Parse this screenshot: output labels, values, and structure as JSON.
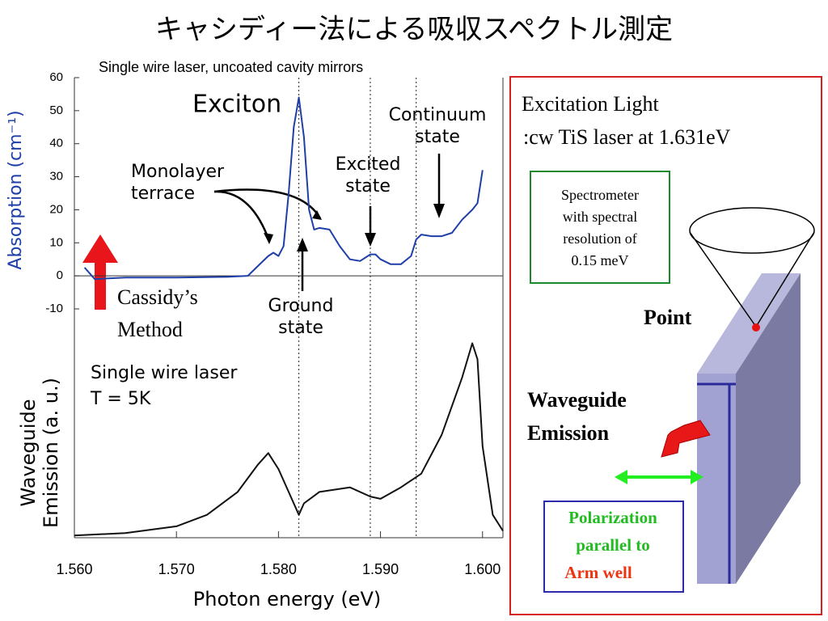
{
  "title": "キャシディー法による吸収スペクトル測定",
  "chart_data": [
    {
      "type": "line",
      "subtitle": "Single wire laser, uncoated cavity mirrors",
      "y_label": "Absorption (cm⁻¹)",
      "x_label": "Photon energy (eV)",
      "color": "#1f3fa8",
      "xlim": [
        1.56,
        1.602
      ],
      "xticks": [
        {
          "value": 1.56,
          "label": "1.560"
        },
        {
          "value": 1.57,
          "label": "1.570"
        },
        {
          "value": 1.58,
          "label": "1.580"
        },
        {
          "value": 1.59,
          "label": "1.590"
        },
        {
          "value": 1.6,
          "label": "1.600"
        }
      ],
      "ylim": [
        -10,
        60
      ],
      "yticks": [
        60,
        50,
        40,
        30,
        20,
        10,
        0,
        -10
      ],
      "vlines": [
        1.582,
        1.589,
        1.5935
      ],
      "x": [
        1.561,
        1.562,
        1.565,
        1.57,
        1.575,
        1.577,
        1.578,
        1.579,
        1.5795,
        1.58,
        1.5805,
        1.581,
        1.5815,
        1.582,
        1.5825,
        1.583,
        1.5835,
        1.584,
        1.585,
        1.586,
        1.587,
        1.588,
        1.589,
        1.5895,
        1.59,
        1.591,
        1.592,
        1.593,
        1.5935,
        1.594,
        1.595,
        1.596,
        1.597,
        1.598,
        1.599,
        1.5995,
        1.6
      ],
      "values": [
        2.5,
        -1,
        -0.5,
        -0.5,
        -0.3,
        0,
        3,
        6,
        7,
        6,
        9,
        25,
        45,
        54,
        42,
        20,
        14,
        14.5,
        14,
        9,
        5,
        4.5,
        6.5,
        6.5,
        5,
        3.5,
        3.5,
        6,
        11,
        12.5,
        12,
        12,
        13,
        17,
        20,
        22,
        32
      ],
      "annotations": {
        "exciton": "Exciton",
        "monolayer": [
          "Monolayer",
          "terrace"
        ],
        "excited": [
          "Excited",
          "state"
        ],
        "continuum": [
          "Continuum",
          "state"
        ],
        "ground": [
          "Ground",
          "state"
        ],
        "cassidy": [
          "Cassidy’s",
          "Method"
        ]
      }
    },
    {
      "type": "line",
      "y_label": [
        "Waveguide",
        "Emission (a. u.)"
      ],
      "color": "#111111",
      "xlim": [
        1.56,
        1.602
      ],
      "ylim": [
        0,
        100
      ],
      "x": [
        1.56,
        1.565,
        1.57,
        1.573,
        1.576,
        1.578,
        1.579,
        1.58,
        1.581,
        1.582,
        1.5825,
        1.584,
        1.587,
        1.589,
        1.59,
        1.592,
        1.594,
        1.596,
        1.598,
        1.599,
        1.5995,
        1.6,
        1.601,
        1.602
      ],
      "values": [
        1,
        2,
        5,
        10,
        20,
        32,
        37,
        30,
        20,
        10,
        15,
        20,
        22,
        18,
        17,
        22,
        28,
        45,
        70,
        85,
        78,
        40,
        10,
        3
      ],
      "annotations": {
        "sample": [
          "Single wire laser",
          "T = 5K"
        ]
      }
    }
  ],
  "diagram": {
    "excitation": [
      "Excitation Light",
      ":cw TiS laser at 1.631eV"
    ],
    "spectrometer": [
      "Spectrometer",
      "with spectral",
      "resolution of",
      "0.15 meV"
    ],
    "point": "Point",
    "waveguide": [
      "Waveguide",
      "Emission"
    ],
    "polarization": [
      "Polarization",
      "parallel to"
    ],
    "arm": "Arm well"
  }
}
